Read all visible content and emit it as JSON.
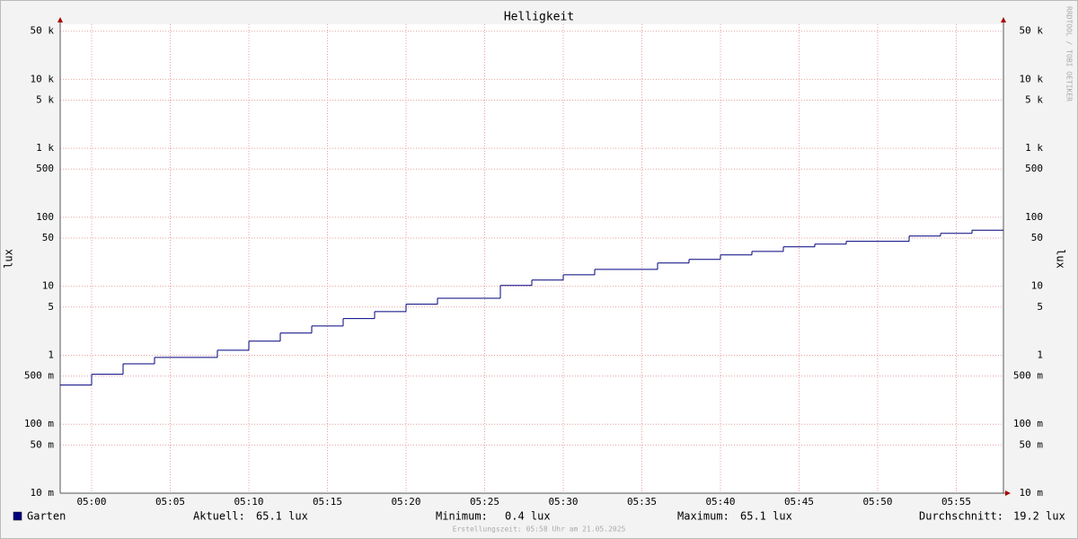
{
  "chart_data": {
    "type": "step",
    "title": "Helligkeit",
    "y_label": "lux",
    "watermark": "RRDTOOL / TOBI OETIKER",
    "footer": "Erstellungszeit: 05:58 Uhr am 21.05.2025",
    "log_y": true,
    "grid": true,
    "xlim": [
      "04:58",
      "05:58"
    ],
    "xticks": [
      "05:00",
      "05:05",
      "05:10",
      "05:15",
      "05:20",
      "05:25",
      "05:30",
      "05:35",
      "05:40",
      "05:45",
      "05:50",
      "05:55"
    ],
    "ylim": [
      0.01,
      63000
    ],
    "yticks": [
      {
        "value": 0.01,
        "label": "10 m"
      },
      {
        "value": 0.05,
        "label": "50 m"
      },
      {
        "value": 0.1,
        "label": "100 m"
      },
      {
        "value": 0.5,
        "label": "500 m"
      },
      1,
      5,
      10,
      50,
      100,
      500,
      {
        "value": 1000,
        "label": "1 k"
      },
      {
        "value": 5000,
        "label": "5 k"
      },
      {
        "value": 10000,
        "label": "10 k"
      },
      {
        "value": 50000,
        "label": "50 k"
      }
    ],
    "x": [
      "04:58",
      "05:00",
      "05:02",
      "05:04",
      "05:08",
      "05:10",
      "05:12",
      "05:14",
      "05:16",
      "05:18",
      "05:20",
      "05:22",
      "05:26",
      "05:28",
      "05:30",
      "05:32",
      "05:36",
      "05:38",
      "05:40",
      "05:42",
      "05:44",
      "05:46",
      "05:48",
      "05:52",
      "05:54",
      "05:56"
    ],
    "series": [
      {
        "name": "Garten",
        "color": "#00007f",
        "values": [
          0.37,
          0.53,
          0.75,
          0.93,
          1.18,
          1.6,
          2.1,
          2.66,
          3.4,
          4.3,
          5.5,
          6.7,
          10.3,
          12.3,
          14.7,
          17.6,
          21.8,
          24.5,
          28.5,
          32,
          37.3,
          40.8,
          44.8,
          53.6,
          58.6,
          65.1
        ]
      }
    ],
    "stats": [
      {
        "label": "Aktuell:",
        "value": "65.1 lux"
      },
      {
        "label": "Minimum:",
        "value": "0.4 lux"
      },
      {
        "label": "Maximum:",
        "value": "65.1 lux"
      },
      {
        "label": "Durchschnitt:",
        "value": "19.2 lux"
      }
    ]
  }
}
